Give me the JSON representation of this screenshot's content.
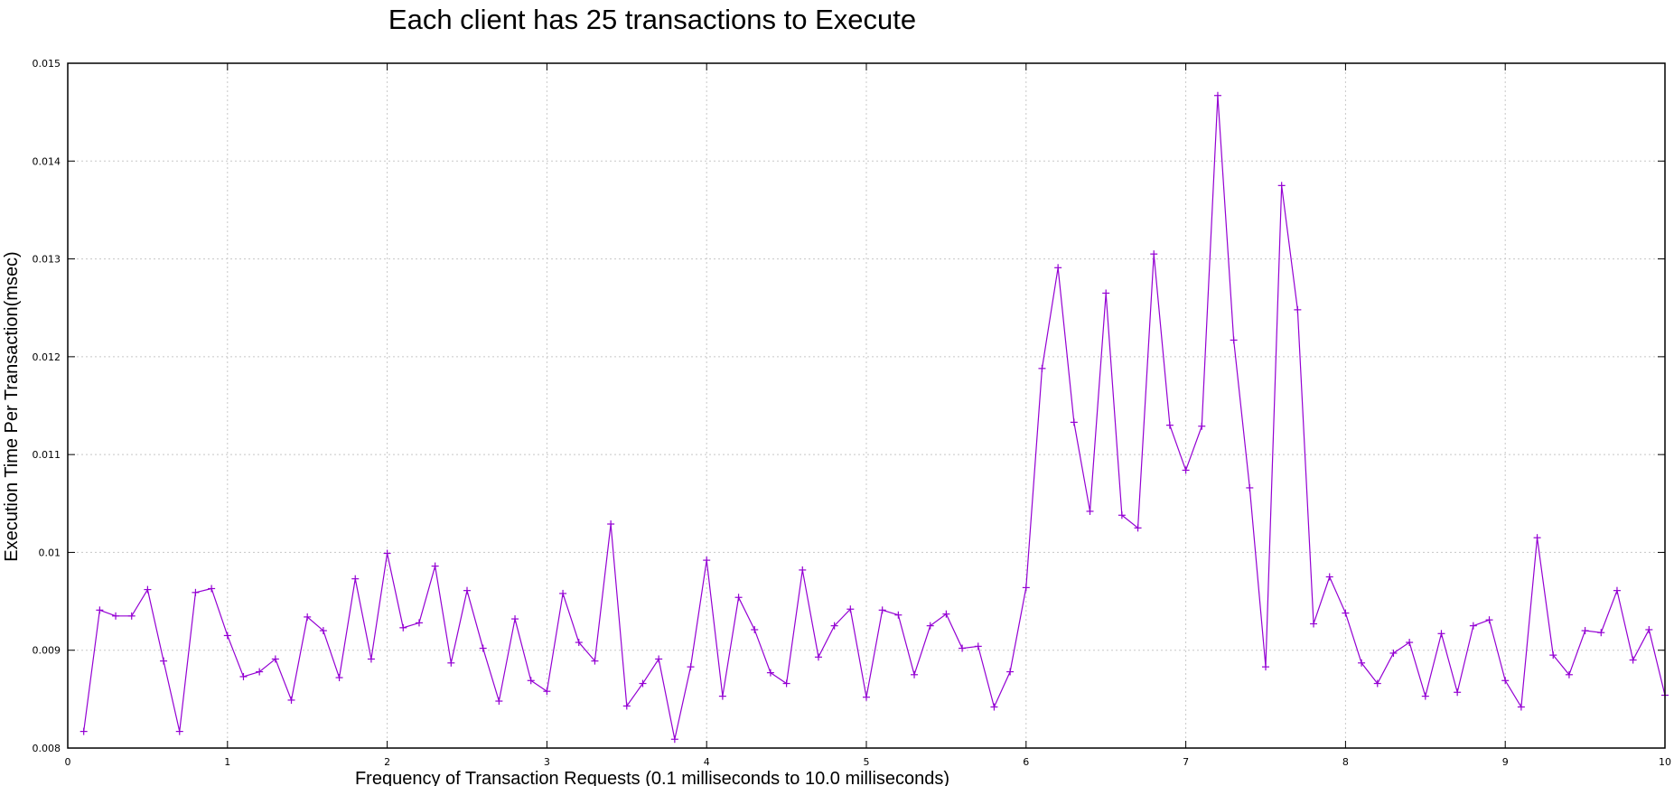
{
  "chart_data": {
    "type": "line",
    "title": "Each client has 25 transactions to Execute",
    "xlabel": "Frequency of Transaction Requests (0.1 milliseconds to 10.0 milliseconds)",
    "ylabel": "Execution Time Per Transaction(msec)",
    "xlim": [
      0,
      10
    ],
    "ylim": [
      0.008,
      0.015
    ],
    "x_ticks": [
      "0",
      "1",
      "2",
      "3",
      "4",
      "5",
      "6",
      "7",
      "8",
      "9",
      "10"
    ],
    "y_ticks": [
      "0.008",
      "0.009",
      "0.01",
      "0.011",
      "0.012",
      "0.013",
      "0.014",
      "0.015"
    ],
    "grid": true,
    "legend": "none",
    "series": [
      {
        "color": "#9400d3",
        "marker": "plus",
        "x": [
          0.1,
          0.2,
          0.3,
          0.4,
          0.5,
          0.6,
          0.7,
          0.8,
          0.9,
          1.0,
          1.1,
          1.2,
          1.3,
          1.4,
          1.5,
          1.6,
          1.7,
          1.8,
          1.9,
          2.0,
          2.1,
          2.2,
          2.3,
          2.4,
          2.5,
          2.6,
          2.7,
          2.8,
          2.9,
          3.0,
          3.1,
          3.2,
          3.3,
          3.4,
          3.5,
          3.6,
          3.7,
          3.8,
          3.9,
          4.0,
          4.1,
          4.2,
          4.3,
          4.4,
          4.5,
          4.6,
          4.7,
          4.8,
          4.9,
          5.0,
          5.1,
          5.2,
          5.3,
          5.4,
          5.5,
          5.6,
          5.7,
          5.8,
          5.9,
          6.0,
          6.1,
          6.2,
          6.3,
          6.4,
          6.5,
          6.6,
          6.7,
          6.8,
          6.9,
          7.0,
          7.1,
          7.2,
          7.3,
          7.4,
          7.5,
          7.6,
          7.7,
          7.8,
          7.9,
          8.0,
          8.1,
          8.2,
          8.3,
          8.4,
          8.5,
          8.6,
          8.7,
          8.8,
          8.9,
          9.0,
          9.1,
          9.2,
          9.3,
          9.4,
          9.5,
          9.6,
          9.7,
          9.8,
          9.9,
          10.0
        ],
        "y": [
          0.00817,
          0.00941,
          0.00935,
          0.00935,
          0.00962,
          0.00889,
          0.00817,
          0.00959,
          0.00963,
          0.00915,
          0.00873,
          0.00878,
          0.00891,
          0.00849,
          0.00934,
          0.0092,
          0.00872,
          0.00973,
          0.00891,
          0.00999,
          0.00923,
          0.00928,
          0.00986,
          0.00887,
          0.00961,
          0.00902,
          0.00848,
          0.00932,
          0.00869,
          0.00858,
          0.00958,
          0.00908,
          0.00889,
          0.01029,
          0.00843,
          0.00866,
          0.00891,
          0.00809,
          0.00883,
          0.00992,
          0.00853,
          0.00954,
          0.00921,
          0.00877,
          0.00866,
          0.00982,
          0.00893,
          0.00925,
          0.00942,
          0.00852,
          0.00941,
          0.00936,
          0.00875,
          0.00925,
          0.00937,
          0.00902,
          0.00904,
          0.00842,
          0.00878,
          0.00964,
          0.01188,
          0.01291,
          0.01133,
          0.01042,
          0.01265,
          0.01038,
          0.01025,
          0.01305,
          0.0113,
          0.01084,
          0.01129,
          0.01467,
          0.01217,
          0.01066,
          0.00883,
          0.01375,
          0.01248,
          0.00927,
          0.00975,
          0.00938,
          0.00887,
          0.00866,
          0.00897,
          0.00908,
          0.00853,
          0.00917,
          0.00857,
          0.00925,
          0.00931,
          0.00869,
          0.00842,
          0.01015,
          0.00895,
          0.00875,
          0.0092,
          0.00918,
          0.00961,
          0.0089,
          0.00921,
          0.00854
        ]
      }
    ]
  }
}
